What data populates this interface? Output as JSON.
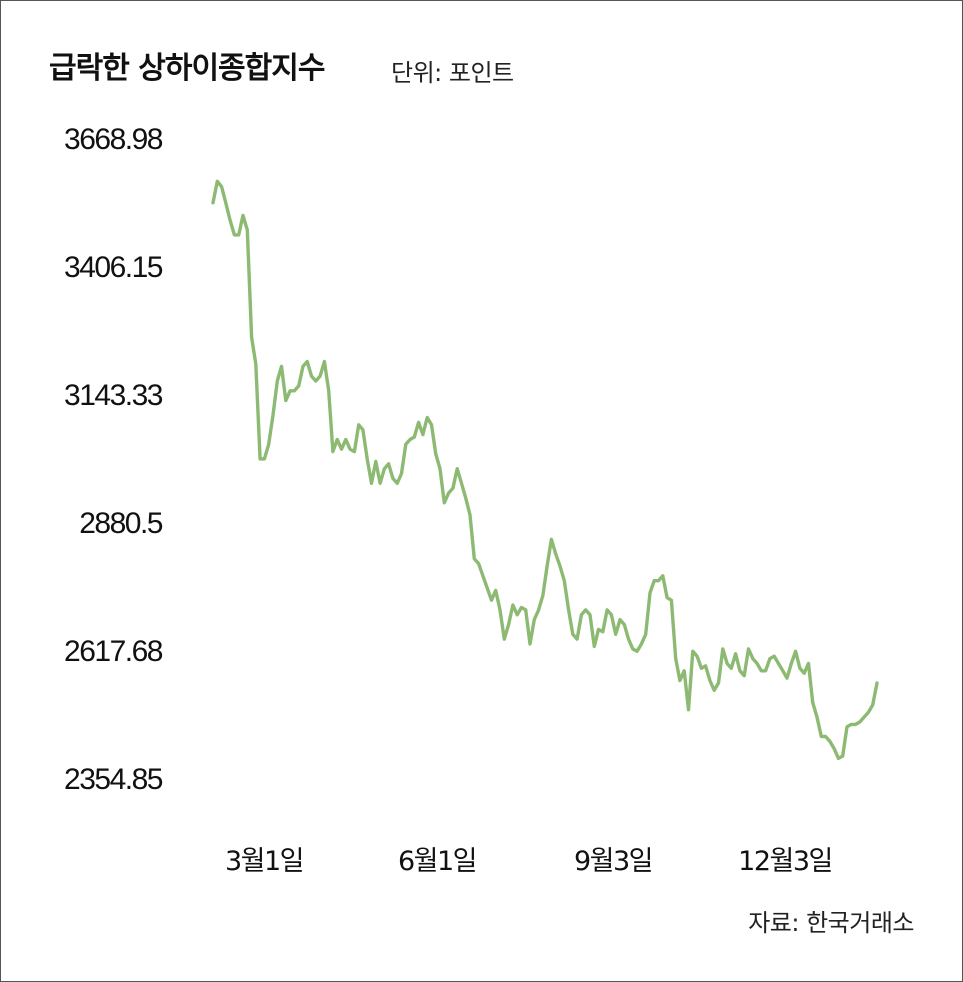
{
  "title": "급락한 상하이종합지수",
  "unit": "단위: 포인트",
  "source": "자료: 한국거래소",
  "colors": {
    "line": "#8dba72",
    "text": "#111111",
    "border": "#555555"
  },
  "chart_data": {
    "type": "line",
    "title": "급락한 상하이종합지수",
    "ylabel": "단위: 포인트",
    "ylim": [
      2354.85,
      3668.98
    ],
    "yticks": [
      "3668.98",
      "3406.15",
      "3143.33",
      "2880.5",
      "2617.68",
      "2354.85"
    ],
    "xtick_labels": [
      "3월1일",
      "6월1일",
      "9월3일",
      "12월3일"
    ],
    "grid": false,
    "legend": "none",
    "series": [
      {
        "values": [
          3536,
          3580,
          3569,
          3535,
          3500,
          3470,
          3470,
          3510,
          3480,
          3260,
          3205,
          3010,
          3010,
          3040,
          3100,
          3170,
          3200,
          3130,
          3150,
          3150,
          3160,
          3200,
          3210,
          3180,
          3170,
          3180,
          3210,
          3150,
          3025,
          3050,
          3030,
          3050,
          3030,
          3025,
          3080,
          3070,
          3010,
          2960,
          3005,
          2960,
          2990,
          3000,
          2970,
          2960,
          2980,
          3040,
          3050,
          3055,
          3085,
          3060,
          3095,
          3080,
          3020,
          2990,
          2920,
          2940,
          2950,
          2990,
          2960,
          2930,
          2895,
          2805,
          2795,
          2770,
          2745,
          2720,
          2740,
          2700,
          2640,
          2670,
          2710,
          2690,
          2705,
          2700,
          2630,
          2680,
          2700,
          2730,
          2790,
          2845,
          2815,
          2790,
          2760,
          2700,
          2650,
          2640,
          2690,
          2700,
          2690,
          2625,
          2660,
          2655,
          2700,
          2690,
          2650,
          2680,
          2670,
          2640,
          2620,
          2615,
          2630,
          2650,
          2735,
          2760,
          2760,
          2770,
          2725,
          2720,
          2600,
          2555,
          2575,
          2495,
          2615,
          2605,
          2580,
          2585,
          2555,
          2535,
          2550,
          2620,
          2590,
          2580,
          2610,
          2575,
          2565,
          2620,
          2600,
          2590,
          2575,
          2575,
          2600,
          2605,
          2590,
          2575,
          2560,
          2590,
          2615,
          2580,
          2570,
          2590,
          2510,
          2480,
          2440,
          2440,
          2430,
          2415,
          2395,
          2400,
          2460,
          2465,
          2465,
          2470,
          2480,
          2490,
          2505,
          2550
        ]
      }
    ]
  }
}
